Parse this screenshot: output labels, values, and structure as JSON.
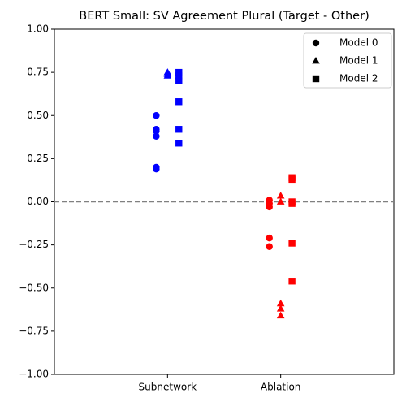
{
  "chart_data": {
    "type": "strip",
    "title": "BERT Small: SV Agreement Plural (Target - Other)",
    "categories": [
      "Subnetwork",
      "Ablation"
    ],
    "category_colors": [
      "blue",
      "red"
    ],
    "xlim": [
      -1,
      2
    ],
    "ylim": [
      -1,
      1
    ],
    "yticks": [
      {
        "value": -1,
        "label": "−1.00"
      },
      {
        "value": -0.75,
        "label": "−0.75"
      },
      {
        "value": -0.5,
        "label": "−0.50"
      },
      {
        "value": -0.25,
        "label": "−0.25"
      },
      {
        "value": 0,
        "label": "0.00"
      },
      {
        "value": 0.25,
        "label": "0.25"
      },
      {
        "value": 0.5,
        "label": "0.50"
      },
      {
        "value": 0.75,
        "label": "0.75"
      },
      {
        "value": 1,
        "label": "1.00"
      }
    ],
    "reference_line": {
      "y": 0,
      "color": "gray",
      "style": "dashed"
    },
    "legend": "upper right",
    "series": [
      {
        "name": "Model 0",
        "marker": "circle",
        "values": [
          [
            0.5,
            0.42,
            0.41,
            0.38,
            0.2,
            0.19
          ],
          [
            0.01,
            -0.01,
            -0.03,
            -0.21,
            -0.26
          ]
        ]
      },
      {
        "name": "Model 1",
        "marker": "triangle",
        "values": [
          [
            0.75,
            0.74,
            0.73
          ],
          [
            0.035,
            0.0,
            -0.59,
            -0.62,
            -0.66
          ]
        ]
      },
      {
        "name": "Model 2",
        "marker": "square",
        "values": [
          [
            0.75,
            0.73,
            0.7,
            0.58,
            0.42,
            0.34
          ],
          [
            0.14,
            0.13,
            0.0,
            -0.01,
            -0.24,
            -0.46
          ]
        ]
      }
    ]
  }
}
